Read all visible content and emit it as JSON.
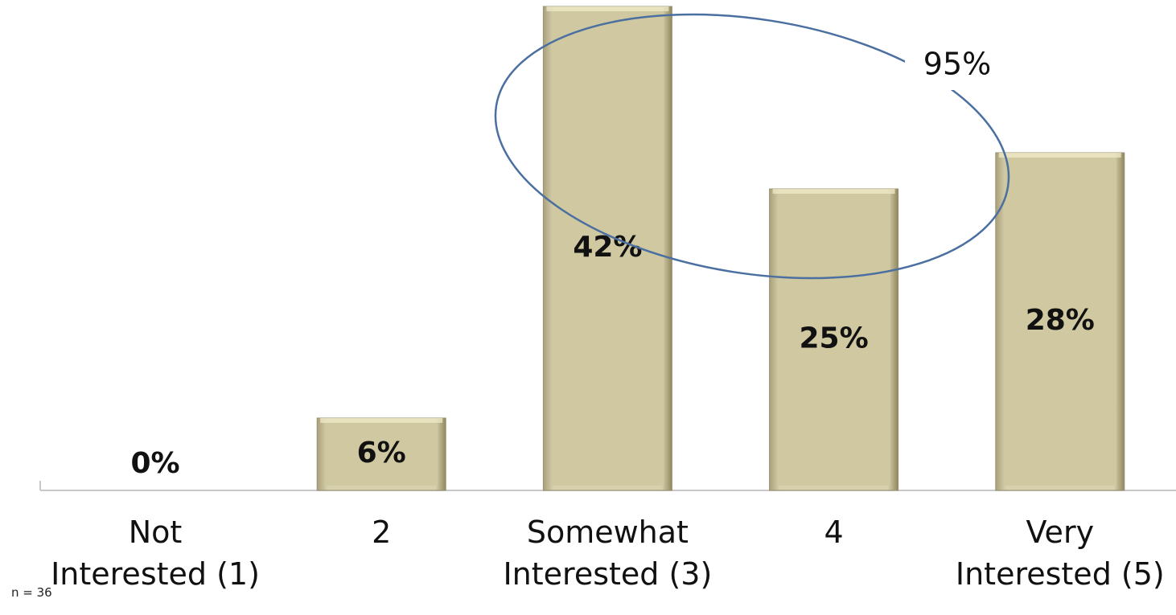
{
  "chart_data": {
    "type": "bar",
    "categories": [
      "Not Interested (1)",
      "2",
      "Somewhat Interested (3)",
      "4",
      "Very Interested (5)"
    ],
    "values": [
      0,
      6,
      42,
      25,
      28
    ],
    "value_labels": [
      "0%",
      "6%",
      "42%",
      "25%",
      "28%"
    ],
    "color": "#cfc8a0",
    "annotation": "95%",
    "note": "n = 36"
  }
}
